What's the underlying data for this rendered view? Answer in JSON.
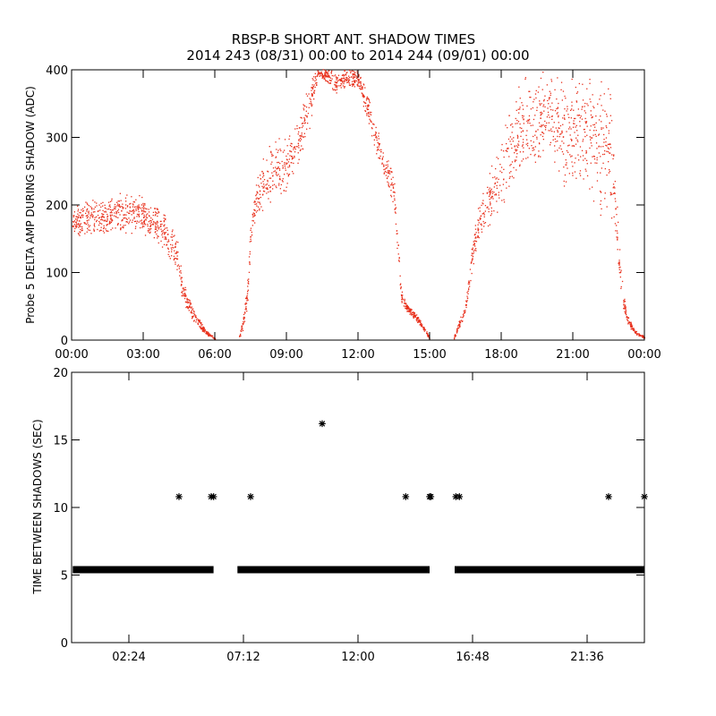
{
  "figure": {
    "title": "RBSP-B SHORT ANT. SHADOW TIMES",
    "subtitle": "2014 243 (08/31) 00:00 to 2014 244 (09/01) 00:00"
  },
  "colors": {
    "background": "#ffffff",
    "axes": "#000000",
    "series_top": "#e8301c",
    "series_bottom": "#000000"
  },
  "chart_data": [
    {
      "type": "scatter",
      "title": "RBSP-B SHORT ANT. SHADOW TIMES",
      "subtitle": "2014 243 (08/31) 00:00 to 2014 244 (09/01) 00:00",
      "xlabel": "",
      "ylabel": "Probe 5 DELTA AMP DURING SHADOW (ADC)",
      "x_unit": "hours since 2014-08-31 00:00",
      "xlim": [
        0,
        24
      ],
      "ylim": [
        0,
        400
      ],
      "x_ticks": [
        0,
        3,
        6,
        9,
        12,
        15,
        18,
        21,
        24
      ],
      "x_tick_labels": [
        "00:00",
        "03:00",
        "06:00",
        "09:00",
        "12:00",
        "15:00",
        "18:00",
        "21:00",
        "00:00"
      ],
      "y_ticks": [
        0,
        100,
        200,
        300,
        400
      ],
      "y_tick_labels": [
        "0",
        "100",
        "200",
        "300",
        "400"
      ],
      "grid": false,
      "marker": "dot",
      "series": [
        {
          "color": "#e8301c",
          "envelope": {
            "x": [
              0.0,
              0.5,
              1.0,
              1.5,
              2.0,
              2.5,
              3.0,
              3.5,
              4.0,
              4.4,
              4.6,
              4.8,
              5.0,
              5.3,
              5.6,
              5.9,
              6.0,
              7.0,
              7.2,
              7.4,
              7.5,
              7.7,
              8.0,
              8.5,
              9.0,
              9.5,
              10.0,
              10.3,
              10.7,
              11.0,
              11.5,
              12.0,
              12.5,
              13.0,
              13.5,
              13.8,
              14.0,
              14.5,
              15.0,
              16.0,
              16.3,
              16.5,
              16.8,
              17.0,
              17.5,
              18.0,
              18.5,
              19.0,
              19.5,
              20.0,
              20.5,
              21.0,
              21.5,
              22.0,
              22.3,
              22.6,
              22.9,
              23.1,
              23.3,
              23.6,
              24.0
            ],
            "y_low": [
              150,
              152,
              154,
              155,
              156,
              156,
              154,
              145,
              120,
              95,
              60,
              42,
              30,
              18,
              8,
              2,
              0,
              0,
              15,
              55,
              140,
              170,
              185,
              205,
              210,
              260,
              310,
              390,
              380,
              360,
              370,
              375,
              300,
              240,
              185,
              55,
              42,
              25,
              0,
              0,
              20,
              40,
              105,
              140,
              165,
              195,
              215,
              230,
              250,
              270,
              215,
              210,
              215,
              185,
              160,
              180,
              95,
              45,
              20,
              8,
              0
            ],
            "y_high": [
              200,
              205,
              210,
              215,
              218,
              220,
              215,
              200,
              185,
              165,
              100,
              75,
              55,
              35,
              15,
              6,
              2,
              5,
              40,
              120,
              185,
              230,
              280,
              300,
              305,
              330,
              400,
              400,
              400,
              400,
              400,
              400,
              360,
              290,
              250,
              75,
              55,
              35,
              5,
              3,
              38,
              60,
              150,
              195,
              250,
              310,
              360,
              400,
              400,
              400,
              400,
              400,
              400,
              400,
              400,
              380,
              170,
              70,
              35,
              14,
              5
            ]
          }
        }
      ]
    },
    {
      "type": "scatter",
      "title": "",
      "xlabel": "",
      "ylabel": "TIME BETWEEN SHADOWS (SEC)",
      "x_unit": "hours since 2014-08-31 00:00",
      "xlim": [
        0,
        24
      ],
      "ylim": [
        0,
        20
      ],
      "x_ticks": [
        2.4,
        7.2,
        12.0,
        16.8,
        21.6
      ],
      "x_tick_labels": [
        "02:24",
        "07:12",
        "12:00",
        "16:48",
        "21:36"
      ],
      "y_ticks": [
        0,
        5,
        10,
        15,
        20
      ],
      "y_tick_labels": [
        "0",
        "5",
        "10",
        "15",
        "20"
      ],
      "grid": false,
      "marker": "asterisk",
      "series": [
        {
          "color": "#000000",
          "baseline_value": 5.4,
          "baseline_segments": [
            [
              0.05,
              5.95
            ],
            [
              6.95,
              15.0
            ],
            [
              16.05,
              24.0
            ]
          ],
          "points": {
            "x": [
              4.5,
              5.85,
              5.95,
              7.5,
              10.5,
              14.0,
              15.0,
              15.05,
              16.1,
              16.25,
              22.5,
              24.0
            ],
            "y": [
              10.8,
              10.8,
              10.8,
              10.8,
              16.2,
              10.8,
              10.8,
              10.8,
              10.8,
              10.8,
              10.8,
              10.8
            ]
          }
        }
      ]
    }
  ]
}
